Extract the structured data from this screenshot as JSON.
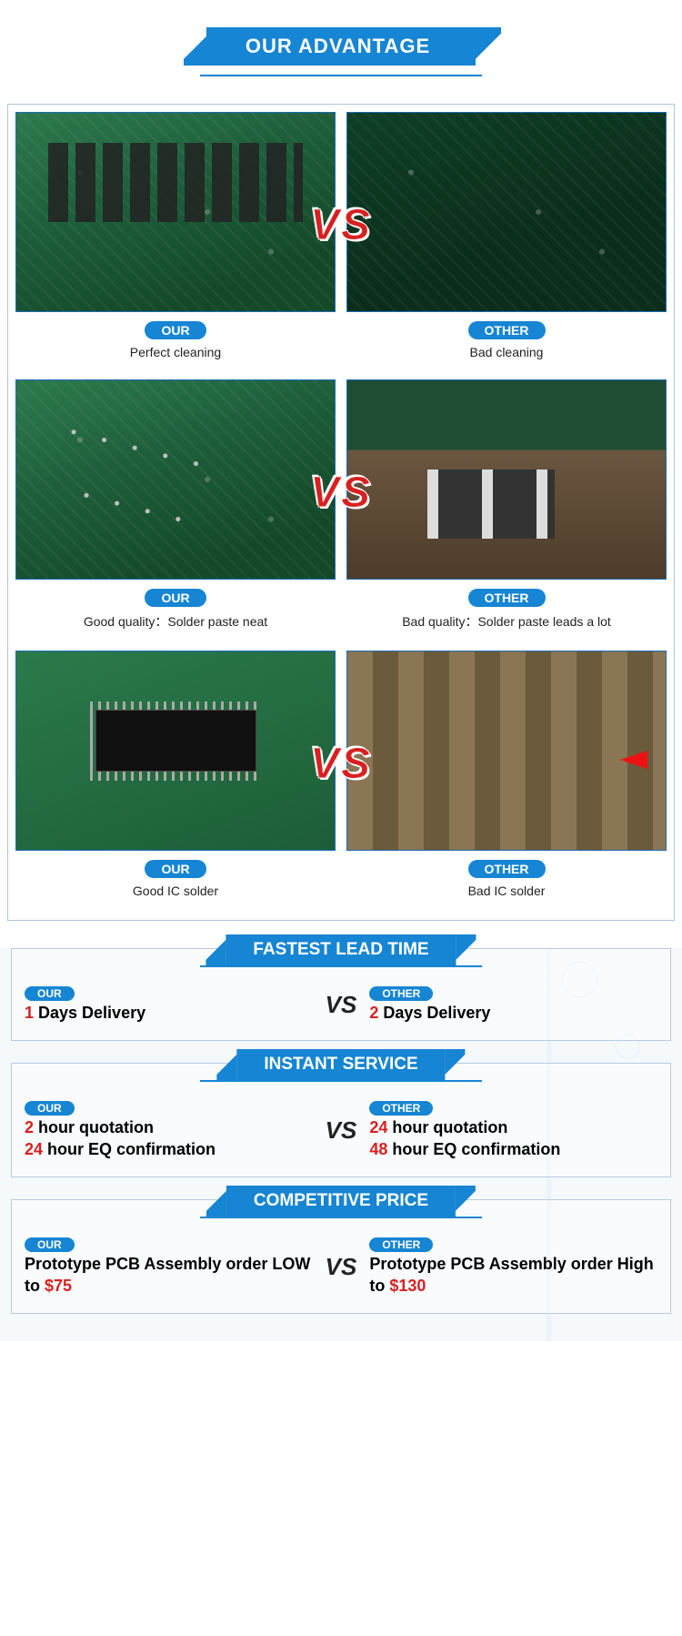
{
  "header": {
    "title": "OUR ADVANTAGE"
  },
  "badges": {
    "our": "OUR",
    "other": "OTHER"
  },
  "vs": "VS",
  "compare": [
    {
      "our_caption": "Perfect cleaning",
      "other_caption": "Bad cleaning",
      "our_class": "pcb-green pcb-components",
      "other_class": "pcb-green pcb-dark"
    },
    {
      "our_caption": "Good quality：Solder paste neat",
      "other_caption": "Bad quality：Solder paste leads a lot",
      "our_class": "pcb-green pcb-solder",
      "other_class": "pcb-metal"
    },
    {
      "our_caption": "Good IC solder",
      "other_caption": "Bad IC solder",
      "our_class": "pcb-ic",
      "other_class": "pcb-bad-ic"
    }
  ],
  "sections": {
    "lead": {
      "title": "FASTEST LEAD TIME",
      "our_num": "1",
      "our_rest": " Days Delivery",
      "other_num": "2",
      "other_rest": " Days Delivery"
    },
    "service": {
      "title": "INSTANT SERVICE",
      "our_l1_num": "2",
      "our_l1_rest": " hour quotation",
      "our_l2_num": "24",
      "our_l2_rest": " hour EQ confirmation",
      "other_l1_num": "24",
      "other_l1_rest": " hour quotation",
      "other_l2_num": "48",
      "other_l2_rest": " hour EQ confirmation"
    },
    "price": {
      "title": "COMPETITIVE PRICE",
      "our_pre": "Prototype PCB Assembly order LOW to ",
      "our_val": "$75",
      "other_pre": "Prototype PCB Assembly order High to ",
      "other_val": "$130"
    }
  },
  "colors": {
    "brand": "#1685d3",
    "accent": "#d92020"
  }
}
